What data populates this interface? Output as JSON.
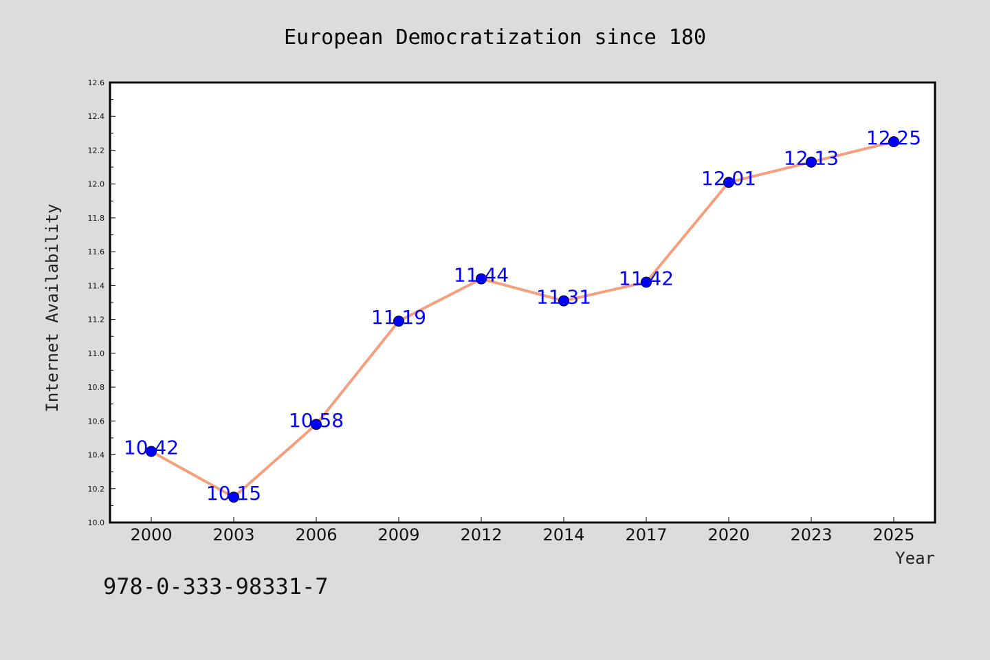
{
  "chart_data": {
    "type": "line",
    "title": "European Democratization since 180",
    "xlabel": "Year",
    "ylabel": "Internet Availability",
    "categories": [
      "2000",
      "2003",
      "2006",
      "2009",
      "2012",
      "2014",
      "2017",
      "2020",
      "2023",
      "2025"
    ],
    "series": [
      {
        "values": [
          10.42,
          10.15,
          10.58,
          11.19,
          11.44,
          11.31,
          11.42,
          12.01,
          12.13,
          12.25
        ],
        "line_color": "#f4a07e",
        "marker_color": "#0000ff"
      }
    ],
    "data_labels": [
      "10.42",
      "10.15",
      "10.58",
      "11.19",
      "11.44",
      "11.31",
      "11.42",
      "12.01",
      "12.13",
      "12.25"
    ],
    "ylim": [
      10.0,
      12.6
    ],
    "yticks": [
      "10.0",
      "10.2",
      "10.4",
      "10.6",
      "10.8",
      "11.0",
      "11.2",
      "11.4",
      "11.6",
      "11.8",
      "12.0",
      "12.2",
      "12.4",
      "12.6"
    ],
    "grid": false,
    "legend": "none"
  },
  "annotation": {
    "isbn": "978-0-333-98331-7"
  },
  "colors": {
    "background": "#dcdcdc",
    "plot_background": "#ffffff"
  }
}
